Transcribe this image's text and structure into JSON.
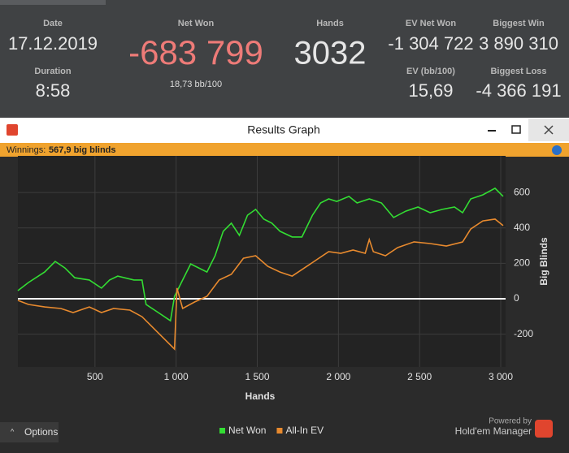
{
  "stats": {
    "date_label": "Date",
    "date": "17.12.2019",
    "duration_label": "Duration",
    "duration": "8:58",
    "net_won_label": "Net Won",
    "net_won": "-683 799",
    "bb100": "18,73 bb/100",
    "hands_label": "Hands",
    "hands": "3032",
    "ev_net_won_label": "EV Net Won",
    "ev_net_won": "-1 304 722",
    "ev_bb100_label": "EV (bb/100)",
    "ev_bb100": "15,69",
    "biggest_win_label": "Biggest Win",
    "biggest_win": "3 890 310",
    "biggest_loss_label": "Biggest Loss",
    "biggest_loss": "-4 366 191"
  },
  "window": {
    "title": "Results Graph",
    "winnings_label": "Winnings:",
    "winnings": "567,9 big blinds",
    "options": "Options",
    "powered_by": "Powered by",
    "brand": "Hold'em Manager"
  },
  "chart_data": {
    "type": "line",
    "x_label": "Hands",
    "y_label": "Big Blinds",
    "xlim": [
      25,
      3030
    ],
    "ylim": [
      -385,
      807
    ],
    "xticks": [
      500,
      {
        "value": 1000,
        "label": "1 000"
      },
      {
        "value": 1500,
        "label": "1 500"
      },
      {
        "value": 2000,
        "label": "2 000"
      },
      {
        "value": 2500,
        "label": "2 500"
      },
      {
        "value": 3000,
        "label": "3 000"
      }
    ],
    "yticks": [
      -200,
      0,
      200,
      400,
      600
    ],
    "grid": true,
    "series": [
      {
        "name": "Net Won",
        "color": "#33dd33",
        "x": [
          25,
          90,
          190,
          255,
          315,
          375,
          465,
          540,
          590,
          640,
          740,
          790,
          815,
          890,
          965,
          990,
          1040,
          1090,
          1140,
          1190,
          1240,
          1290,
          1340,
          1390,
          1440,
          1490,
          1540,
          1590,
          1640,
          1715,
          1775,
          1840,
          1890,
          1940,
          1990,
          2065,
          2115,
          2190,
          2265,
          2340,
          2415,
          2490,
          2565,
          2640,
          2715,
          2765,
          2815,
          2890,
          2965,
          3015
        ],
        "values": [
          46,
          92,
          151,
          211,
          174,
          119,
          106,
          60,
          106,
          128,
          106,
          106,
          -32,
          -78,
          -124,
          14,
          106,
          197,
          174,
          151,
          243,
          381,
          427,
          358,
          472,
          505,
          450,
          427,
          381,
          349,
          349,
          472,
          541,
          564,
          550,
          578,
          541,
          564,
          541,
          459,
          495,
          518,
          486,
          505,
          518,
          486,
          564,
          587,
          624,
          578
        ]
      },
      {
        "name": "All-In EV",
        "color": "#e88a2e",
        "x": [
          25,
          90,
          190,
          290,
          365,
          465,
          540,
          615,
          715,
          790,
          840,
          915,
          990,
          1005,
          1040,
          1115,
          1190,
          1265,
          1340,
          1415,
          1490,
          1565,
          1640,
          1715,
          1790,
          1865,
          1940,
          2015,
          2090,
          2165,
          2190,
          2215,
          2290,
          2365,
          2465,
          2565,
          2665,
          2765,
          2815,
          2890,
          2965,
          3015
        ],
        "values": [
          -9,
          -32,
          -46,
          -55,
          -78,
          -46,
          -78,
          -55,
          -64,
          -101,
          -147,
          -216,
          -284,
          60,
          -55,
          -18,
          14,
          106,
          138,
          229,
          243,
          183,
          151,
          128,
          174,
          220,
          266,
          257,
          275,
          257,
          335,
          266,
          243,
          289,
          321,
          312,
          298,
          321,
          394,
          440,
          450,
          413
        ]
      }
    ]
  }
}
